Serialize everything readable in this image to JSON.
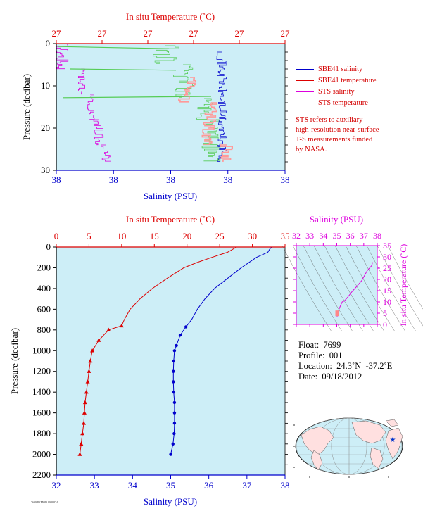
{
  "top_panel": {
    "top_axis_label": "In situ Temperature (˚C)",
    "top_ticks": [
      "27",
      "27",
      "27",
      "27",
      "27",
      "27"
    ],
    "bottom_axis_label": "Salinity (PSU)",
    "bottom_ticks": [
      "38",
      "38",
      "38",
      "38",
      "38"
    ],
    "left_axis_label": "Pressure (decibar)",
    "left_ticks": [
      "0",
      "10",
      "20",
      "30"
    ]
  },
  "legend": {
    "items": [
      {
        "label": "SBE41 salinity",
        "color": "#0000cc"
      },
      {
        "label": "SBE41 temperature",
        "color": "#dd0000"
      },
      {
        "label": "STS salinity",
        "color": "#dd00dd"
      },
      {
        "label": "STS temperature",
        "color": "#55cc55"
      }
    ],
    "note_lines": [
      "STS refers to auxiliary",
      "high-resolution near-surface",
      "T-S measurements funded",
      "by NASA."
    ]
  },
  "main_panel": {
    "top_axis_label": "In situ Temperature (˚C)",
    "top_ticks": [
      "0",
      "5",
      "10",
      "15",
      "20",
      "25",
      "30",
      "35"
    ],
    "bottom_axis_label": "Salinity (PSU)",
    "bottom_ticks": [
      "32",
      "33",
      "34",
      "35",
      "36",
      "37",
      "38"
    ],
    "left_axis_label": "Pressure (decibar)",
    "left_ticks": [
      "0",
      "200",
      "400",
      "600",
      "800",
      "1000",
      "1200",
      "1400",
      "1600",
      "1800",
      "2000",
      "2200"
    ]
  },
  "ts_panel": {
    "top_axis_label": "Salinity (PSU)",
    "top_ticks": [
      "32",
      "33",
      "34",
      "35",
      "36",
      "37",
      "38"
    ],
    "right_axis_label": "In situ Temperature (˚C)",
    "right_ticks": [
      "0",
      "5",
      "10",
      "15",
      "20",
      "25",
      "30",
      "35"
    ]
  },
  "float_info": {
    "float": "Float:  7699",
    "profile": "Profile:  001",
    "location": "Location:  24.3˚N  -37.2˚E",
    "date": "Date:  09/18/2012"
  },
  "credit": "7699 PEMOD 8988874",
  "colors": {
    "plot_bg": "#cdeef7",
    "temperature": "#dd0000",
    "salinity": "#0000cc",
    "sts_salinity": "#dd00dd",
    "sts_temperature": "#55cc55",
    "ts_curve": "#dd00dd",
    "land": "#ffe0e0",
    "ocean": "#cdeef7"
  },
  "chart_data": [
    {
      "type": "line",
      "title": "",
      "xlabel": "Salinity (PSU)",
      "x2label": "In situ Temperature (˚C)",
      "ylabel": "Pressure (decibar)",
      "ylim": [
        30,
        0
      ],
      "series": [
        {
          "name": "SBE41 salinity",
          "y": [
            2,
            6,
            10,
            14,
            18,
            22,
            26,
            28
          ]
        },
        {
          "name": "SBE41 temperature",
          "y": [
            8,
            12,
            16,
            20,
            24
          ]
        },
        {
          "name": "STS salinity",
          "y": [
            0,
            2,
            4,
            6,
            8,
            10,
            12,
            14,
            16,
            18,
            20,
            22,
            24,
            26,
            28
          ]
        },
        {
          "name": "STS temperature",
          "y": [
            0,
            2,
            4,
            6,
            8,
            10,
            12,
            14,
            16,
            18,
            20,
            22,
            24,
            26,
            28
          ]
        }
      ]
    },
    {
      "type": "line",
      "title": "",
      "xlabel": "Salinity (PSU)",
      "x2label": "In situ Temperature (˚C)",
      "ylabel": "Pressure (decibar)",
      "xlim": [
        32,
        38
      ],
      "x2lim": [
        0,
        35
      ],
      "ylim": [
        2200,
        0
      ],
      "series": [
        {
          "name": "In situ Temperature",
          "axis": "top",
          "y": [
            0,
            50,
            100,
            150,
            200,
            300,
            400,
            500,
            600,
            700,
            760,
            800,
            900,
            1000,
            1100,
            1200,
            1300,
            1400,
            1500,
            1600,
            1700,
            1800,
            1900,
            2000
          ],
          "x": [
            27.6,
            26.2,
            23.8,
            21.5,
            19.5,
            17.0,
            14.7,
            12.8,
            11.3,
            10.4,
            10.0,
            8.0,
            6.5,
            5.5,
            5.2,
            5.0,
            4.8,
            4.6,
            4.4,
            4.3,
            4.2,
            4.0,
            3.8,
            3.6
          ],
          "markers_from": 10
        },
        {
          "name": "Salinity",
          "axis": "bottom",
          "y": [
            0,
            20,
            50,
            100,
            200,
            300,
            400,
            500,
            600,
            700,
            770,
            850,
            950,
            1000,
            1100,
            1200,
            1300,
            1400,
            1500,
            1600,
            1700,
            1800,
            1900,
            2000
          ],
          "x": [
            37.65,
            37.6,
            37.55,
            37.25,
            36.85,
            36.5,
            36.15,
            35.9,
            35.7,
            35.55,
            35.4,
            35.25,
            35.15,
            35.1,
            35.08,
            35.07,
            35.07,
            35.08,
            35.1,
            35.1,
            35.1,
            35.09,
            35.06,
            35.0
          ],
          "markers_from": 10
        }
      ]
    },
    {
      "type": "line",
      "title": "",
      "xlabel": "Salinity (PSU)",
      "ylabel": "In situ Temperature (˚C)",
      "xlim": [
        32,
        38
      ],
      "ylim": [
        0,
        35
      ],
      "series": [
        {
          "name": "T-S curve",
          "x": [
            37.65,
            37.6,
            37.25,
            36.85,
            36.5,
            36.15,
            35.9,
            35.7,
            35.55,
            35.4,
            35.25,
            35.15,
            35.1,
            35.08,
            35.07,
            35.07,
            35.08,
            35.1,
            35.1,
            35.09,
            35.06,
            35.0
          ],
          "y": [
            27.6,
            26.2,
            23.8,
            19.5,
            17.0,
            14.7,
            12.8,
            11.3,
            10.4,
            10.0,
            8.0,
            6.5,
            5.5,
            5.2,
            5.0,
            4.8,
            4.6,
            4.4,
            4.3,
            4.0,
            3.8,
            3.6
          ]
        }
      ]
    }
  ]
}
